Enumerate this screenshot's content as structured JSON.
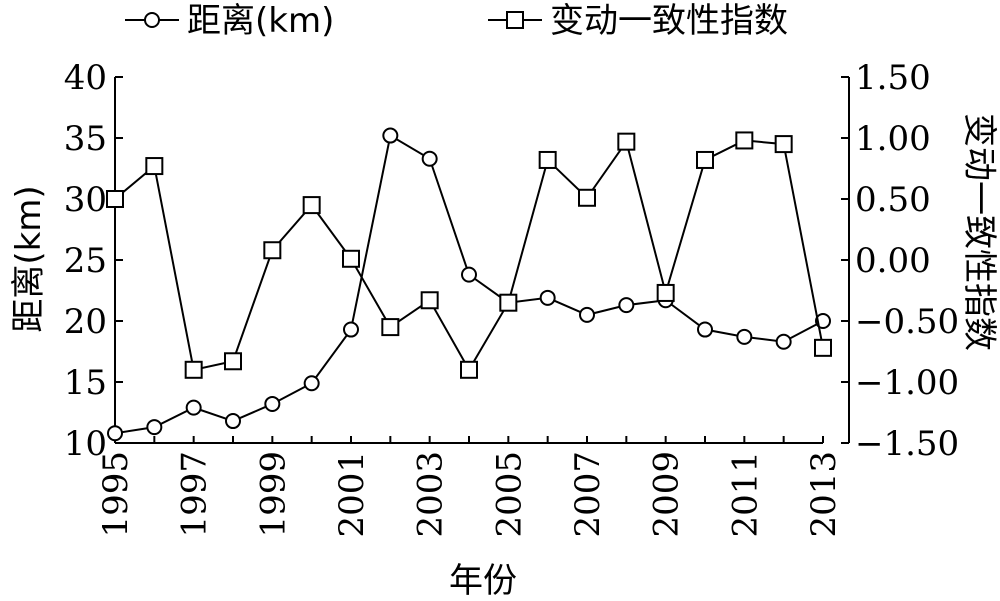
{
  "chart_data": {
    "type": "line",
    "x": [
      1995,
      1996,
      1997,
      1998,
      1999,
      2000,
      2001,
      2002,
      2003,
      2004,
      2005,
      2006,
      2007,
      2008,
      2009,
      2010,
      2011,
      2012,
      2013
    ],
    "x_tick_labels": [
      "1995",
      "1997",
      "1999",
      "2001",
      "2003",
      "2005",
      "2007",
      "2009",
      "2011",
      "2013"
    ],
    "xlim": [
      1995,
      2013
    ],
    "xlabel": "年份",
    "left_axis": {
      "label": "距离(km)",
      "ylim": [
        10,
        40
      ],
      "ticks": [
        "10",
        "15",
        "20",
        "25",
        "30",
        "35",
        "40"
      ]
    },
    "right_axis": {
      "label": "变动一致性指数",
      "ylim": [
        -1.5,
        1.5
      ],
      "ticks": [
        "-1.50",
        "-1.00",
        "-0.50",
        "0.00",
        "0.50",
        "1.00",
        "1.50"
      ]
    },
    "series": [
      {
        "name": "距离(km)",
        "axis": "left",
        "marker": "circle",
        "values": [
          10.8,
          11.3,
          12.9,
          11.8,
          13.2,
          14.9,
          19.3,
          35.2,
          33.3,
          23.8,
          21.5,
          21.9,
          20.5,
          21.3,
          21.7,
          19.3,
          18.7,
          18.3,
          20.0
        ]
      },
      {
        "name": "变动一致性指数",
        "axis": "right",
        "marker": "square",
        "values": [
          0.5,
          0.77,
          -0.9,
          -0.83,
          0.08,
          0.45,
          0.01,
          -0.55,
          -0.33,
          -0.9,
          -0.35,
          0.82,
          0.51,
          0.97,
          -0.27,
          0.82,
          0.98,
          0.95,
          -0.72
        ]
      }
    ],
    "legend_position": "top",
    "grid": false
  }
}
